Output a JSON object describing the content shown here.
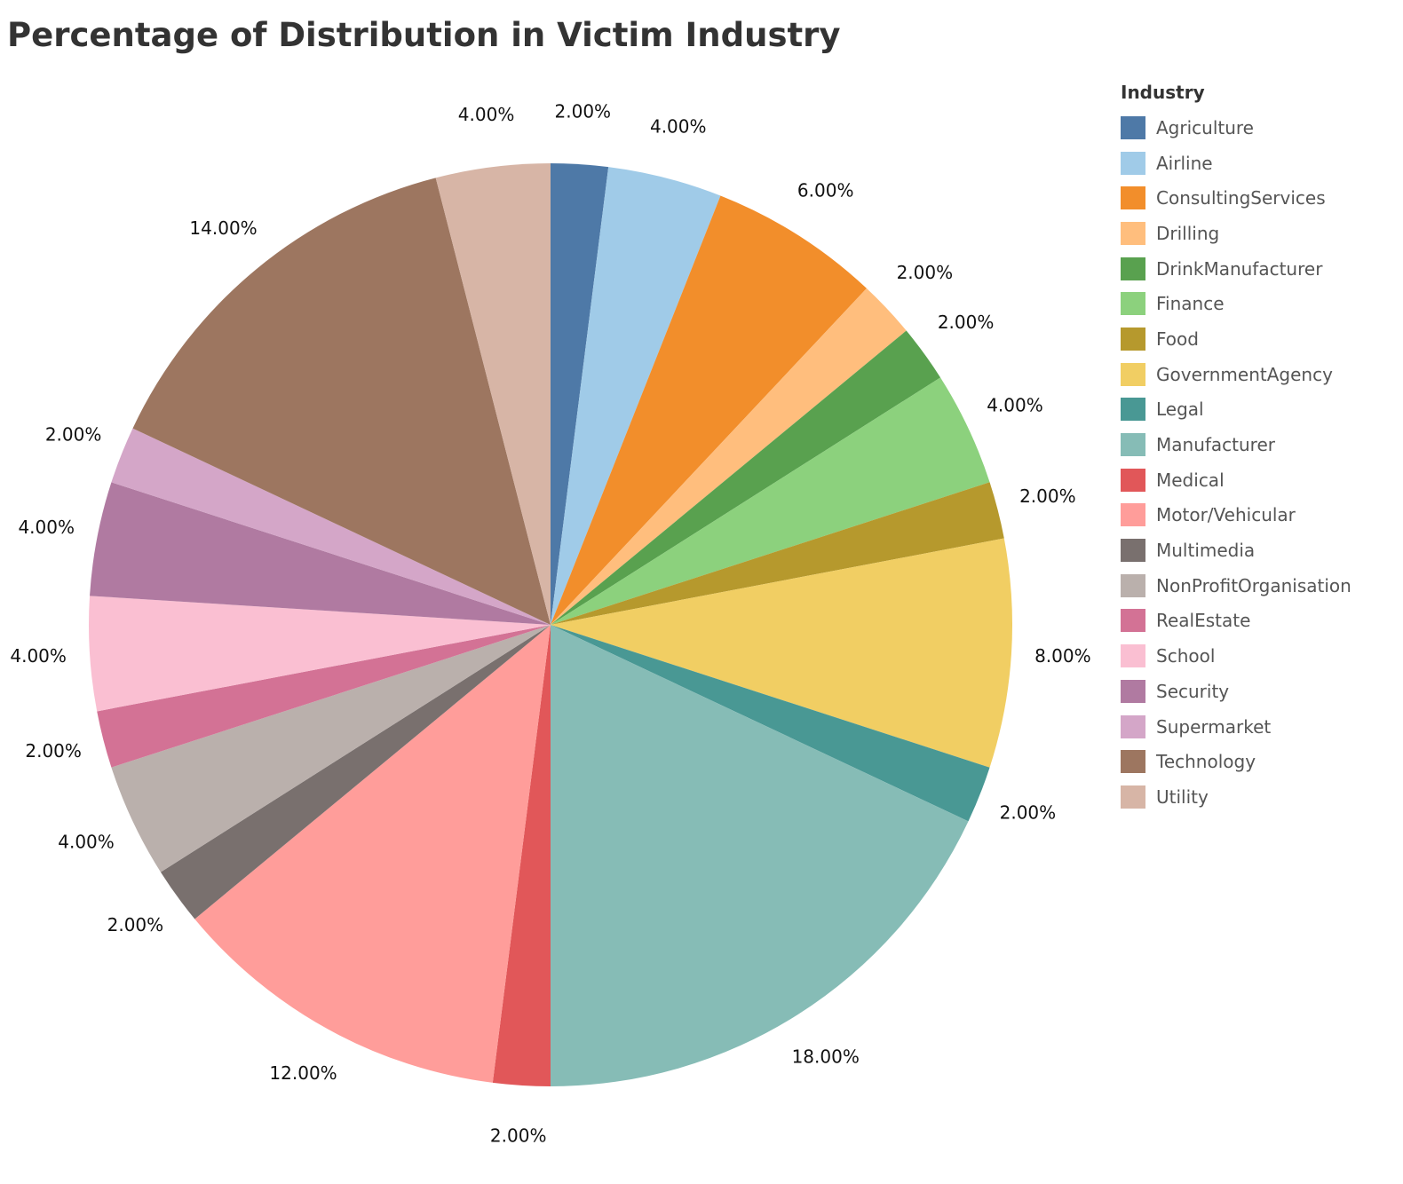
{
  "chart_data": {
    "type": "pie",
    "title": "Percentage of Distribution in Victim Industry",
    "legend_title": "Industry",
    "legend_position": "right",
    "categories": [
      "Agriculture",
      "Airline",
      "ConsultingServices",
      "Drilling",
      "DrinkManufacturer",
      "Finance",
      "Food",
      "GovernmentAgency",
      "Legal",
      "Manufacturer",
      "Medical",
      "Motor/Vehicular",
      "Multimedia",
      "NonProfitOrganisation",
      "RealEstate",
      "School",
      "Security",
      "Supermarket",
      "Technology",
      "Utility"
    ],
    "values": [
      2,
      4,
      6,
      2,
      2,
      4,
      2,
      8,
      2,
      18,
      2,
      12,
      2,
      4,
      2,
      4,
      4,
      2,
      14,
      4
    ],
    "labels": [
      "2.00%",
      "4.00%",
      "6.00%",
      "2.00%",
      "2.00%",
      "4.00%",
      "2.00%",
      "8.00%",
      "2.00%",
      "18.00%",
      "2.00%",
      "12.00%",
      "2.00%",
      "4.00%",
      "2.00%",
      "4.00%",
      "4.00%",
      "2.00%",
      "14.00%",
      "4.00%"
    ],
    "colors": [
      "#4e79a7",
      "#a0cbe8",
      "#f28e2b",
      "#ffbe7d",
      "#59a14f",
      "#8cd17d",
      "#b6992d",
      "#f1ce63",
      "#499894",
      "#86bcb6",
      "#e15759",
      "#ff9d9a",
      "#79706e",
      "#bab0ac",
      "#d37295",
      "#fabfd2",
      "#b07aa1",
      "#d4a6c8",
      "#9d7660",
      "#d7b5a6"
    ],
    "start_angle": "12 o'clock",
    "direction": "clockwise"
  }
}
